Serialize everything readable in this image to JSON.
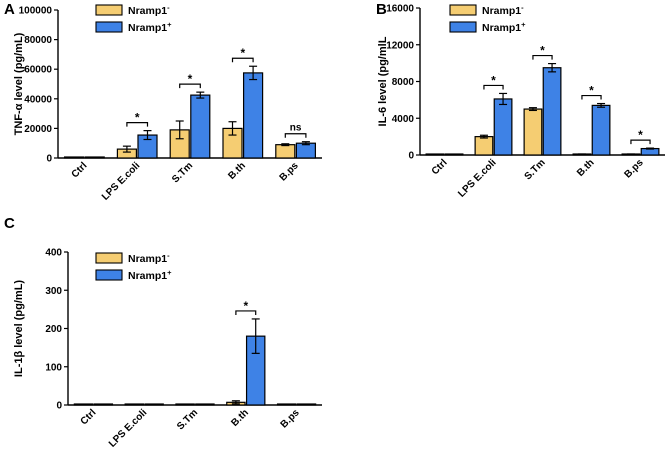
{
  "colors": {
    "nramp_minus": "#F5CD72",
    "nramp_plus": "#3E82E6",
    "stroke": "#000000"
  },
  "chart_data": [
    {
      "panel": "A",
      "type": "bar",
      "ylabel": "TNF-α level (pg/mL)",
      "ylim": [
        0,
        100000
      ],
      "yticks": [
        0,
        20000,
        40000,
        60000,
        80000,
        100000
      ],
      "ytick_labels": [
        "0",
        "20000",
        "40000",
        "60000",
        "80000",
        "100000"
      ],
      "categories": [
        "Ctrl",
        "LPS E.coli",
        "S.Tm",
        "B.th",
        "B.ps"
      ],
      "series": [
        {
          "name": "Nramp1",
          "sup": "-",
          "values": [
            0,
            6000,
            19000,
            20000,
            9000
          ],
          "errors": [
            0,
            2000,
            6000,
            4500,
            600
          ]
        },
        {
          "name": "Nramp1",
          "sup": "+",
          "values": [
            0,
            15500,
            42500,
            57500,
            10000
          ],
          "errors": [
            0,
            3000,
            2000,
            4500,
            1000
          ]
        }
      ],
      "significance": [
        "",
        "*",
        "*",
        "*",
        "ns"
      ]
    },
    {
      "panel": "B",
      "type": "bar",
      "ylabel": "IL-6 level (pg/mlL",
      "ylim": [
        0,
        16000
      ],
      "yticks": [
        0,
        4000,
        8000,
        12000,
        16000
      ],
      "ytick_labels": [
        "0",
        "4000",
        "8000",
        "12000",
        "16000"
      ],
      "categories": [
        "Ctrl",
        "LPS E.coli",
        "S.Tm",
        "B.th",
        "B.ps"
      ],
      "series": [
        {
          "name": "Nramp1",
          "sup": "-",
          "values": [
            0,
            2000,
            5000,
            80,
            80
          ],
          "errors": [
            0,
            150,
            150,
            30,
            30
          ]
        },
        {
          "name": "Nramp1",
          "sup": "+",
          "values": [
            0,
            6100,
            9500,
            5400,
            700
          ],
          "errors": [
            0,
            600,
            450,
            200,
            50
          ]
        }
      ],
      "significance": [
        "",
        "*",
        "*",
        "*",
        "*"
      ]
    },
    {
      "panel": "C",
      "type": "bar",
      "ylabel": "IL-1β level (pg/mL)",
      "ylim": [
        0,
        400
      ],
      "yticks": [
        0,
        100,
        200,
        300,
        400
      ],
      "ytick_labels": [
        "0",
        "100",
        "200",
        "300",
        "400"
      ],
      "categories": [
        "Ctrl",
        "LPS E.coli",
        "S.Tm",
        "B.th",
        "B.ps"
      ],
      "series": [
        {
          "name": "Nramp1",
          "sup": "-",
          "values": [
            0,
            0,
            0,
            7,
            0
          ],
          "errors": [
            0,
            0,
            0,
            4,
            0
          ]
        },
        {
          "name": "Nramp1",
          "sup": "+",
          "values": [
            0,
            0,
            0,
            180,
            0
          ],
          "errors": [
            0,
            0,
            0,
            45,
            0
          ]
        }
      ],
      "significance": [
        "",
        "",
        "",
        "*",
        ""
      ]
    }
  ]
}
